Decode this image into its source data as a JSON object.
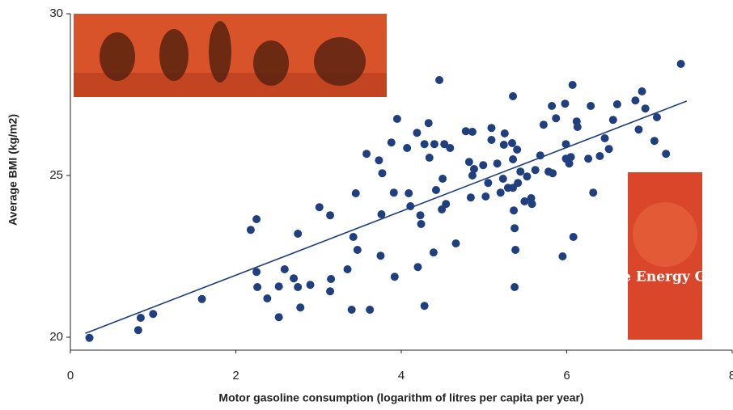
{
  "chart_data": {
    "type": "scatter",
    "x_label": "Motor gasoline consumption (logarithm of litres per capita per year)",
    "y_label": "Average BMI (kg/m2)",
    "cover_text": "The Energy Glut",
    "color": "#1f3f7f",
    "line_color": "#1f3f7f",
    "xlim": [
      0,
      8
    ],
    "xticks": [
      0,
      2,
      4,
      6,
      8
    ],
    "ylim": [
      19.6,
      30
    ],
    "yticks": [
      20,
      25,
      30
    ],
    "x": [
      0.23,
      0.82,
      0.85,
      1.0,
      1.59,
      2.18,
      2.25,
      2.25,
      2.26,
      2.38,
      2.52,
      2.52,
      2.59,
      2.7,
      2.75,
      2.75,
      2.78,
      2.9,
      3.01,
      3.14,
      3.15,
      3.14,
      3.35,
      3.4,
      3.42,
      3.45,
      3.47,
      3.58,
      3.62,
      3.73,
      3.77,
      3.75,
      3.76,
      3.88,
      3.91,
      3.92,
      3.95,
      4.07,
      4.09,
      4.11,
      4.19,
      4.2,
      4.23,
      4.24,
      4.28,
      4.28,
      4.33,
      4.34,
      4.39,
      4.4,
      4.42,
      4.46,
      4.49,
      4.5,
      4.52,
      4.54,
      4.59,
      4.66,
      4.78,
      4.82,
      4.84,
      4.86,
      4.86,
      4.88,
      4.99,
      5.02,
      5.05,
      5.09,
      5.09,
      5.16,
      5.2,
      5.23,
      5.24,
      5.25,
      5.29,
      5.34,
      5.35,
      5.35,
      5.36,
      5.35,
      5.37,
      5.38,
      5.37,
      5.4,
      5.41,
      5.44,
      5.49,
      5.52,
      5.57,
      5.58,
      5.62,
      5.68,
      5.72,
      5.78,
      5.82,
      5.83,
      5.87,
      5.95,
      5.98,
      5.99,
      5.99,
      6.03,
      6.05,
      6.07,
      6.08,
      6.12,
      6.13,
      6.26,
      6.29,
      6.32,
      6.4,
      6.46,
      6.51,
      6.56,
      6.61,
      6.83,
      6.87,
      6.91,
      6.95,
      7.06,
      7.09,
      7.2,
      7.38
    ],
    "values": [
      19.98,
      20.22,
      20.6,
      20.72,
      21.18,
      23.32,
      23.65,
      22.02,
      21.55,
      21.2,
      20.62,
      21.57,
      22.1,
      21.82,
      23.2,
      21.55,
      20.92,
      21.62,
      24.02,
      23.77,
      21.8,
      21.42,
      22.1,
      20.85,
      23.1,
      24.45,
      22.7,
      25.67,
      20.85,
      25.47,
      25.07,
      22.52,
      23.8,
      26.02,
      24.47,
      21.87,
      26.75,
      25.85,
      24.45,
      24.05,
      26.32,
      22.17,
      23.77,
      23.5,
      20.97,
      25.97,
      26.62,
      25.55,
      22.62,
      25.97,
      24.55,
      27.95,
      23.95,
      24.9,
      25.97,
      24.12,
      25.85,
      22.9,
      26.37,
      25.42,
      24.32,
      26.35,
      25.0,
      25.2,
      25.32,
      24.35,
      24.77,
      26.47,
      26.1,
      25.37,
      24.47,
      24.9,
      25.95,
      26.3,
      24.62,
      26.0,
      25.5,
      24.62,
      23.92,
      27.45,
      23.37,
      22.7,
      21.55,
      25.8,
      24.77,
      25.12,
      24.2,
      24.97,
      24.3,
      24.12,
      25.17,
      25.62,
      26.57,
      25.12,
      27.15,
      25.07,
      26.77,
      22.5,
      27.22,
      25.97,
      25.52,
      25.37,
      25.57,
      27.8,
      23.1,
      26.67,
      26.5,
      25.52,
      27.15,
      24.47,
      25.6,
      26.15,
      25.82,
      26.72,
      27.2,
      27.32,
      26.42,
      27.6,
      27.07,
      26.07,
      26.8,
      25.67,
      28.45
    ],
    "trendline": {
      "x": [
        0.18,
        7.45
      ],
      "y": [
        20.12,
        27.3
      ]
    }
  }
}
